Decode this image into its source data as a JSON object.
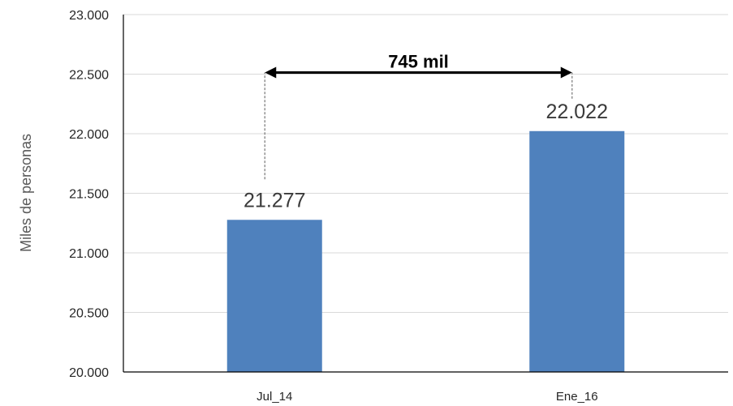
{
  "chart_data": {
    "type": "bar",
    "categories": [
      "Jul_14",
      "Ene_16"
    ],
    "values": [
      21277,
      22022
    ],
    "data_labels": [
      "21.277",
      "22.022"
    ],
    "ylabel": "Miles de personas",
    "xlabel": "",
    "ylim": [
      20000,
      23000
    ],
    "yticks": [
      20000,
      20500,
      21000,
      21500,
      22000,
      22500,
      23000
    ],
    "ytick_labels": [
      "20.000",
      "20.500",
      "21.000",
      "21.500",
      "22.000",
      "22.500",
      "23.000"
    ],
    "grid": true,
    "annotation": {
      "text": "745 mil",
      "from_category": "Jul_14",
      "to_category": "Ene_16",
      "value": 745
    }
  },
  "colors": {
    "bar": "#4f81bd",
    "grid": "#d9d9d9",
    "axis": "#000000",
    "guide": "#7f7f7f",
    "arrow": "#000000"
  }
}
